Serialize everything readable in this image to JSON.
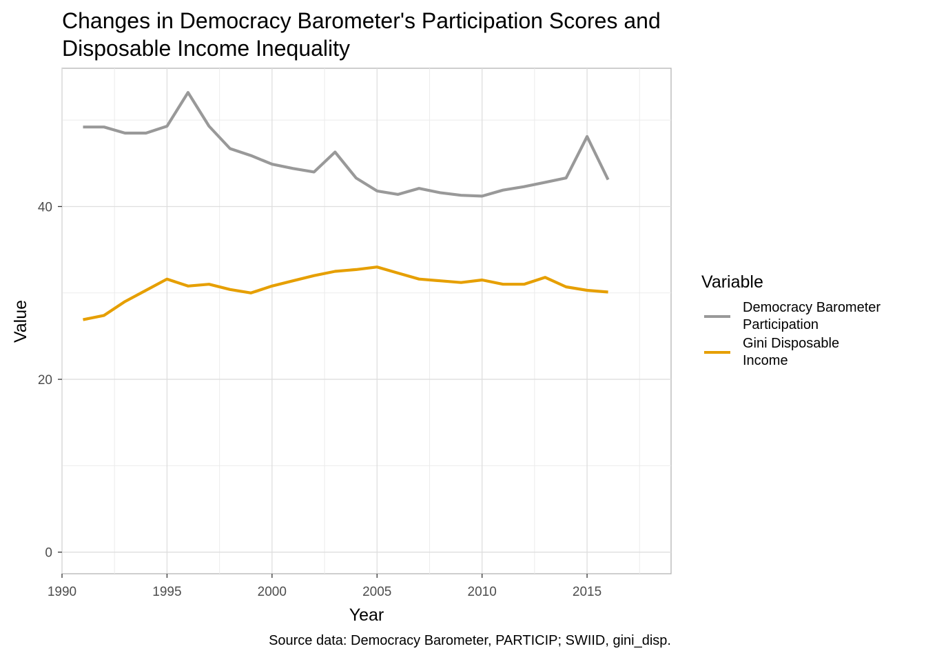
{
  "caption": "Source data: Democracy Barometer, PARTICIP; SWIID, gini_disp.",
  "legend": {
    "title": "Variable",
    "items": [
      {
        "label": "Democracy Barometer\nParticipation",
        "color": "#999999"
      },
      {
        "label": "Gini Disposable\nIncome",
        "color": "#E69F00"
      }
    ]
  },
  "chart_data": {
    "type": "line",
    "title": [
      "Changes in Democracy Barometer's Participation Scores and",
      "Disposable Income Inequality"
    ],
    "xlabel": "Year",
    "ylabel": "Value",
    "xlim": [
      1990,
      2019
    ],
    "ylim": [
      -2.5,
      56
    ],
    "x_ticks": [
      1990,
      1995,
      2000,
      2005,
      2010,
      2015
    ],
    "y_ticks": [
      0,
      20,
      40
    ],
    "grid": true,
    "legend_position": "right",
    "series": [
      {
        "name": "Democracy Barometer Participation",
        "color": "#999999",
        "x": [
          1991,
          1992,
          1993,
          1994,
          1995,
          1996,
          1997,
          1998,
          1999,
          2000,
          2001,
          2002,
          2003,
          2004,
          2005,
          2006,
          2007,
          2008,
          2009,
          2010,
          2011,
          2012,
          2013,
          2014,
          2015,
          2016
        ],
        "values": [
          49.2,
          49.2,
          48.5,
          48.5,
          49.3,
          53.2,
          49.3,
          46.7,
          45.9,
          44.9,
          44.4,
          44.0,
          46.3,
          43.3,
          41.8,
          41.4,
          42.1,
          41.6,
          41.3,
          41.2,
          41.9,
          42.3,
          42.8,
          43.3,
          48.1,
          43.1
        ]
      },
      {
        "name": "Gini Disposable Income",
        "color": "#E69F00",
        "x": [
          1991,
          1992,
          1993,
          1994,
          1995,
          1996,
          1997,
          1998,
          1999,
          2000,
          2001,
          2002,
          2003,
          2004,
          2005,
          2006,
          2007,
          2008,
          2009,
          2010,
          2011,
          2012,
          2013,
          2014,
          2015,
          2016
        ],
        "values": [
          26.9,
          27.4,
          29.0,
          30.3,
          31.6,
          30.8,
          31.0,
          30.4,
          30.0,
          30.8,
          31.4,
          32.0,
          32.5,
          32.7,
          33.0,
          32.3,
          31.6,
          31.4,
          31.2,
          31.5,
          31.0,
          31.0,
          31.8,
          30.7,
          30.3,
          30.1
        ]
      }
    ]
  }
}
